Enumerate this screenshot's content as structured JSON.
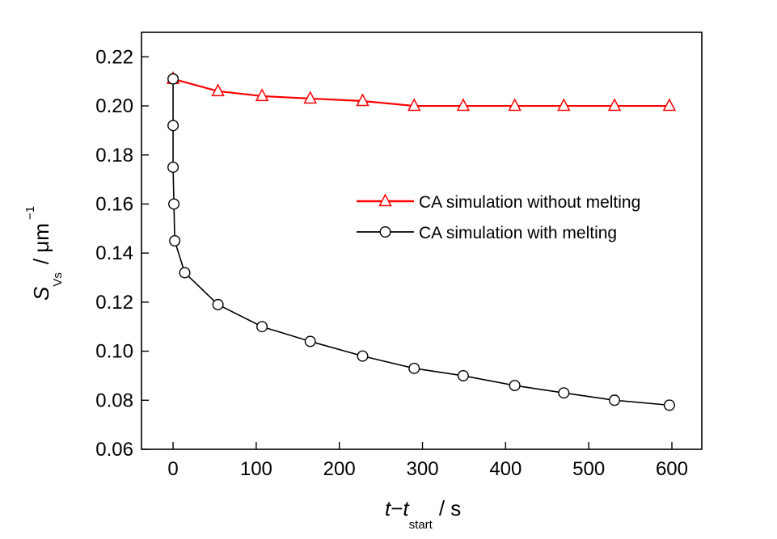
{
  "chart_data": {
    "type": "line",
    "title": "",
    "xlabel": {
      "var1": "t",
      "minus": "−",
      "var2": "t",
      "subscript": "start",
      "unit": "/ s"
    },
    "ylabel": {
      "var": "S",
      "subscript": "Vs",
      "unit_prefix": "/ μm",
      "superscript": "−1"
    },
    "xlim": [
      -38,
      636
    ],
    "ylim": [
      0.06,
      0.23
    ],
    "xticks": [
      0,
      100,
      200,
      300,
      400,
      500,
      600
    ],
    "xtick_labels": [
      "0",
      "100",
      "200",
      "300",
      "400",
      "500",
      "600"
    ],
    "yticks": [
      0.06,
      0.08,
      0.1,
      0.12,
      0.14,
      0.16,
      0.18,
      0.2,
      0.22
    ],
    "ytick_labels": [
      "0.06",
      "0.08",
      "0.10",
      "0.12",
      "0.14",
      "0.16",
      "0.18",
      "0.20",
      "0.22"
    ],
    "grid": false,
    "legend_position": "center-right",
    "series": [
      {
        "name": "CA simulation without melting",
        "color": "#ff0000",
        "marker": "triangle",
        "x": [
          0,
          54,
          107,
          165,
          228,
          290,
          349,
          411,
          470,
          531,
          597
        ],
        "y": [
          0.211,
          0.206,
          0.204,
          0.203,
          0.202,
          0.2,
          0.2,
          0.2,
          0.2,
          0.2,
          0.2
        ]
      },
      {
        "name": "CA simulation with melting",
        "color": "#000000",
        "marker": "circle",
        "x": [
          0,
          0,
          0,
          1,
          2,
          14,
          54,
          107,
          165,
          228,
          290,
          349,
          411,
          470,
          531,
          597
        ],
        "y": [
          0.211,
          0.192,
          0.175,
          0.16,
          0.145,
          0.132,
          0.119,
          0.11,
          0.104,
          0.098,
          0.093,
          0.09,
          0.086,
          0.083,
          0.08,
          0.078
        ]
      }
    ]
  }
}
